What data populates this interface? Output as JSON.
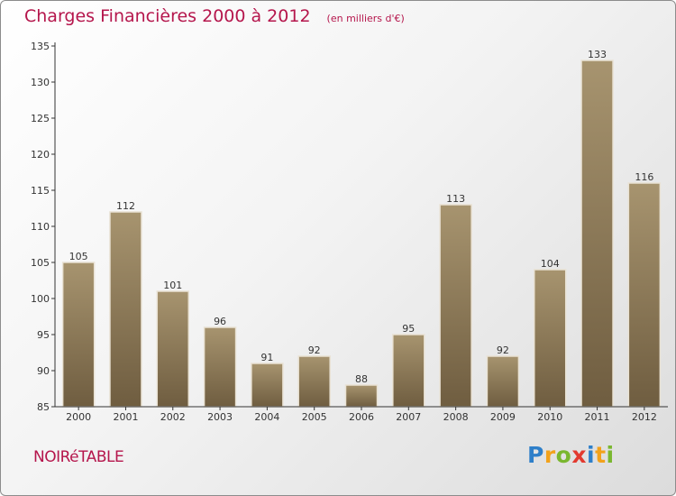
{
  "title": "Charges Financières 2000 à 2012",
  "unit": "(en milliers d'€)",
  "town": "NOIRéTABLE",
  "brand": {
    "letters": [
      "P",
      "r",
      "o",
      "x",
      "i",
      "t",
      "i"
    ],
    "letter_colors": [
      "#2e7fc9",
      "#f2a21b",
      "#7ab72f",
      "#e23a2f",
      "#2e7fc9",
      "#f2a21b",
      "#7ab72f"
    ]
  },
  "colors": {
    "title": "#b5164c",
    "bar": "#8b7656",
    "bar_light": "#a7946f",
    "bar_dark": "#6f5d40",
    "axis": "#333333"
  },
  "chart_data": {
    "type": "bar",
    "categories": [
      "2000",
      "2001",
      "2002",
      "2003",
      "2004",
      "2005",
      "2006",
      "2007",
      "2008",
      "2009",
      "2010",
      "2011",
      "2012"
    ],
    "values": [
      105,
      112,
      101,
      96,
      91,
      92,
      88,
      95,
      113,
      92,
      104,
      133,
      116
    ],
    "ylim": [
      85,
      135
    ],
    "yticks": [
      85,
      90,
      95,
      100,
      105,
      110,
      115,
      120,
      125,
      130,
      135
    ],
    "grid": false
  }
}
